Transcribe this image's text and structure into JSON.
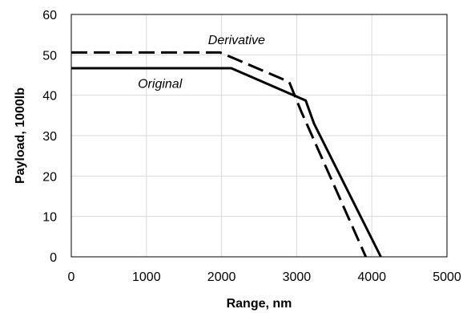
{
  "chart_data": {
    "type": "line",
    "title": "",
    "xlabel": "Range, nm",
    "ylabel": "Payload, 1000lb",
    "xlim": [
      0,
      5000
    ],
    "ylim": [
      0,
      60
    ],
    "xticks": [
      "0",
      "1000",
      "2000",
      "3000",
      "4000",
      "5000"
    ],
    "yticks": [
      "0",
      "10",
      "20",
      "30",
      "40",
      "50",
      "60"
    ],
    "grid": true,
    "legend": "none",
    "series": [
      {
        "name": "Original",
        "style": "solid",
        "color": "#000000",
        "x": [
          0,
          2130,
          3120,
          3230,
          4120
        ],
        "y": [
          46.7,
          46.7,
          38.7,
          33.0,
          0
        ]
      },
      {
        "name": "Derivative",
        "style": "dashed",
        "color": "#000000",
        "x": [
          0,
          1980,
          2900,
          3060,
          3920
        ],
        "y": [
          50.6,
          50.6,
          43.3,
          36.0,
          0
        ]
      }
    ],
    "annotations": [
      {
        "text": "Original",
        "x": 1180,
        "y": 43
      },
      {
        "text": "Derivative",
        "x": 2200,
        "y": 53.8
      }
    ]
  }
}
